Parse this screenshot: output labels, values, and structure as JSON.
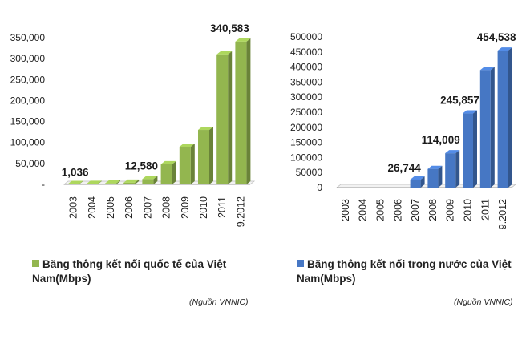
{
  "chart_data": [
    {
      "type": "bar",
      "style": "3d",
      "categories": [
        "2003",
        "2004",
        "2005",
        "2006",
        "2007",
        "2008",
        "2009",
        "2010",
        "2011",
        "9.2012"
      ],
      "series": [
        {
          "name": "Băng thông kết nối quốc tế của Việt Nam(Mbps)",
          "values": [
            1036,
            1300,
            2400,
            4000,
            12580,
            48000,
            90000,
            130000,
            310000,
            340583
          ],
          "color": "#93b64f"
        }
      ],
      "data_labels": [
        {
          "index": 0,
          "text": "1,036"
        },
        {
          "index": 4,
          "text": "12,580"
        },
        {
          "index": 9,
          "text": "340,583"
        }
      ],
      "yticks": [
        "-",
        "50,000",
        "100,000",
        "150,000",
        "200,000",
        "250,000",
        "300,000",
        "350,000"
      ],
      "ylim": [
        0,
        350000
      ],
      "legend_position": "bottom",
      "source": "(Nguồn VNNIC)"
    },
    {
      "type": "bar",
      "style": "3d",
      "categories": [
        "2003",
        "2004",
        "2005",
        "2006",
        "2007",
        "2008",
        "2009",
        "2010",
        "2011",
        "9.2012"
      ],
      "series": [
        {
          "name": "Băng thông kết nối trong nước của Việt Nam(Mbps)",
          "values": [
            0,
            0,
            0,
            0,
            26744,
            62000,
            114009,
            245857,
            390000,
            454538
          ],
          "color": "#4677c4"
        }
      ],
      "data_labels": [
        {
          "index": 4,
          "text": "26,744"
        },
        {
          "index": 6,
          "text": "114,009"
        },
        {
          "index": 7,
          "text": "245,857"
        },
        {
          "index": 9,
          "text": "454,538"
        }
      ],
      "yticks": [
        "0",
        "50000",
        "100000",
        "150000",
        "200000",
        "250000",
        "300000",
        "350000",
        "400000",
        "450000",
        "500000"
      ],
      "ylim": [
        0,
        500000
      ],
      "legend_position": "bottom",
      "source": "(Nguồn VNNIC)"
    }
  ]
}
